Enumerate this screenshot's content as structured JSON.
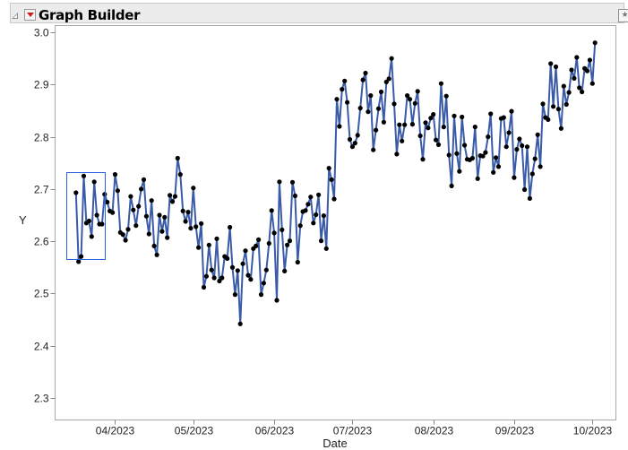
{
  "header": {
    "title": "Graph Builder",
    "collapse_icon": "disclosure-triangle-icon",
    "menu_icon": "red-triangle-menu-icon",
    "pin_icon": "pin-icon"
  },
  "chart_data": {
    "type": "line",
    "title": "",
    "xlabel": "Date",
    "ylabel": "Y",
    "xlim": [
      "2023-03-09",
      "2023-10-10"
    ],
    "ylim": [
      2.258,
      3.013
    ],
    "grid": false,
    "markers": true,
    "line_color": "#3a5ba8",
    "marker_color": "#000000",
    "selection_color": "#2b63e0",
    "y_ticks": [
      2.3,
      2.4,
      2.5,
      2.6,
      2.7,
      2.8,
      2.9,
      3.0
    ],
    "y_tick_labels": [
      "2.3",
      "2.4",
      "2.5",
      "2.6",
      "2.7",
      "2.8",
      "2.9",
      "3.0"
    ],
    "x_ticks": [
      "2023-04-01",
      "2023-05-01",
      "2023-06-01",
      "2023-07-01",
      "2023-08-01",
      "2023-09-01",
      "2023-10-01"
    ],
    "x_tick_labels": [
      "04/2023",
      "05/2023",
      "06/2023",
      "07/2023",
      "08/2023",
      "09/2023",
      "10/2023"
    ],
    "x": [
      "2023-03-17",
      "2023-03-18",
      "2023-03-19",
      "2023-03-20",
      "2023-03-21",
      "2023-03-22",
      "2023-03-23",
      "2023-03-24",
      "2023-03-25",
      "2023-03-26",
      "2023-03-27",
      "2023-03-28",
      "2023-03-29",
      "2023-03-30",
      "2023-03-31",
      "2023-04-01",
      "2023-04-02",
      "2023-04-03",
      "2023-04-04",
      "2023-04-05",
      "2023-04-06",
      "2023-04-07",
      "2023-04-08",
      "2023-04-09",
      "2023-04-10",
      "2023-04-11",
      "2023-04-12",
      "2023-04-13",
      "2023-04-14",
      "2023-04-15",
      "2023-04-16",
      "2023-04-17",
      "2023-04-18",
      "2023-04-19",
      "2023-04-20",
      "2023-04-21",
      "2023-04-22",
      "2023-04-23",
      "2023-04-24",
      "2023-04-25",
      "2023-04-26",
      "2023-04-27",
      "2023-04-28",
      "2023-04-29",
      "2023-04-30",
      "2023-05-01",
      "2023-05-02",
      "2023-05-03",
      "2023-05-04",
      "2023-05-05",
      "2023-05-06",
      "2023-05-07",
      "2023-05-08",
      "2023-05-09",
      "2023-05-10",
      "2023-05-11",
      "2023-05-12",
      "2023-05-13",
      "2023-05-14",
      "2023-05-15",
      "2023-05-16",
      "2023-05-17",
      "2023-05-18",
      "2023-05-19",
      "2023-05-20",
      "2023-05-21",
      "2023-05-22",
      "2023-05-23",
      "2023-05-24",
      "2023-05-25",
      "2023-05-26",
      "2023-05-27",
      "2023-05-28",
      "2023-05-29",
      "2023-05-30",
      "2023-05-31",
      "2023-06-01",
      "2023-06-02",
      "2023-06-03",
      "2023-06-04",
      "2023-06-05",
      "2023-06-06",
      "2023-06-07",
      "2023-06-08",
      "2023-06-09",
      "2023-06-10",
      "2023-06-11",
      "2023-06-12",
      "2023-06-13",
      "2023-06-14",
      "2023-06-15",
      "2023-06-16",
      "2023-06-17",
      "2023-06-18",
      "2023-06-19",
      "2023-06-20",
      "2023-06-21",
      "2023-06-22",
      "2023-06-23",
      "2023-06-24",
      "2023-06-25",
      "2023-06-26",
      "2023-06-27",
      "2023-06-28",
      "2023-06-29",
      "2023-06-30",
      "2023-07-01",
      "2023-07-02",
      "2023-07-03",
      "2023-07-04",
      "2023-07-05",
      "2023-07-06",
      "2023-07-07",
      "2023-07-08",
      "2023-07-09",
      "2023-07-10",
      "2023-07-11",
      "2023-07-12",
      "2023-07-13",
      "2023-07-14",
      "2023-07-15",
      "2023-07-16",
      "2023-07-17",
      "2023-07-18",
      "2023-07-19",
      "2023-07-20",
      "2023-07-21",
      "2023-07-22",
      "2023-07-23",
      "2023-07-24",
      "2023-07-25",
      "2023-07-26",
      "2023-07-27",
      "2023-07-28",
      "2023-07-29",
      "2023-07-30",
      "2023-07-31",
      "2023-08-01",
      "2023-08-02",
      "2023-08-03",
      "2023-08-04",
      "2023-08-05",
      "2023-08-06",
      "2023-08-07",
      "2023-08-08",
      "2023-08-09",
      "2023-08-10",
      "2023-08-11",
      "2023-08-12",
      "2023-08-13",
      "2023-08-14",
      "2023-08-15",
      "2023-08-16",
      "2023-08-17",
      "2023-08-18",
      "2023-08-19",
      "2023-08-20",
      "2023-08-21",
      "2023-08-22",
      "2023-08-23",
      "2023-08-24",
      "2023-08-25",
      "2023-08-26",
      "2023-08-27",
      "2023-08-28",
      "2023-08-29",
      "2023-08-30",
      "2023-08-31",
      "2023-09-01",
      "2023-09-02",
      "2023-09-03",
      "2023-09-04",
      "2023-09-05",
      "2023-09-06",
      "2023-09-07",
      "2023-09-08",
      "2023-09-09",
      "2023-09-10",
      "2023-09-11",
      "2023-09-12",
      "2023-09-13",
      "2023-09-14",
      "2023-09-15",
      "2023-09-16",
      "2023-09-17",
      "2023-09-18",
      "2023-09-19",
      "2023-09-20",
      "2023-09-21",
      "2023-09-22",
      "2023-09-23",
      "2023-09-24",
      "2023-09-25",
      "2023-09-26",
      "2023-09-27",
      "2023-09-28",
      "2023-09-29",
      "2023-09-30",
      "2023-10-01",
      "2023-10-02"
    ],
    "y": [
      2.693,
      2.561,
      2.571,
      2.725,
      2.635,
      2.639,
      2.609,
      2.714,
      2.65,
      2.633,
      2.633,
      2.69,
      2.675,
      2.658,
      2.655,
      2.728,
      2.697,
      2.617,
      2.613,
      2.602,
      2.623,
      2.686,
      2.66,
      2.63,
      2.667,
      2.7,
      2.718,
      2.648,
      2.614,
      2.678,
      2.591,
      2.574,
      2.65,
      2.619,
      2.646,
      2.607,
      2.688,
      2.676,
      2.686,
      2.759,
      2.728,
      2.658,
      2.638,
      2.656,
      2.625,
      2.702,
      2.628,
      2.588,
      2.634,
      2.512,
      2.533,
      2.593,
      2.545,
      2.53,
      2.605,
      2.524,
      2.53,
      2.571,
      2.567,
      2.627,
      2.55,
      2.498,
      2.544,
      2.442,
      2.557,
      2.582,
      2.535,
      2.527,
      2.586,
      2.591,
      2.603,
      2.498,
      2.52,
      2.545,
      2.596,
      2.659,
      2.616,
      2.487,
      2.714,
      2.622,
      2.543,
      2.593,
      2.601,
      2.713,
      2.687,
      2.56,
      2.63,
      2.657,
      2.659,
      2.671,
      2.685,
      2.635,
      2.651,
      2.689,
      2.601,
      2.649,
      2.586,
      2.74,
      2.718,
      2.681,
      2.872,
      2.82,
      2.891,
      2.907,
      2.866,
      2.795,
      2.781,
      2.788,
      2.803,
      2.855,
      2.909,
      2.922,
      2.848,
      2.879,
      2.775,
      2.813,
      2.854,
      2.886,
      2.828,
      2.905,
      2.911,
      2.95,
      2.863,
      2.767,
      2.823,
      2.792,
      2.823,
      2.879,
      2.872,
      2.824,
      2.864,
      2.887,
      2.802,
      2.757,
      2.827,
      2.817,
      2.836,
      2.843,
      2.794,
      2.785,
      2.902,
      2.819,
      2.878,
      2.765,
      2.706,
      2.84,
      2.768,
      2.734,
      2.838,
      2.784,
      2.757,
      2.756,
      2.759,
      2.819,
      2.72,
      2.764,
      2.763,
      2.77,
      2.8,
      2.844,
      2.732,
      2.76,
      2.743,
      2.835,
      2.837,
      2.781,
      2.808,
      2.849,
      2.722,
      2.776,
      2.796,
      2.783,
      2.699,
      2.781,
      2.682,
      2.729,
      2.758,
      2.804,
      2.743,
      2.863,
      2.837,
      2.833,
      2.94,
      2.858,
      2.934,
      2.853,
      2.816,
      2.897,
      2.862,
      2.885,
      2.928,
      2.912,
      2.952,
      2.894,
      2.886,
      2.931,
      2.926,
      2.947,
      2.902,
      2.98
    ]
  }
}
